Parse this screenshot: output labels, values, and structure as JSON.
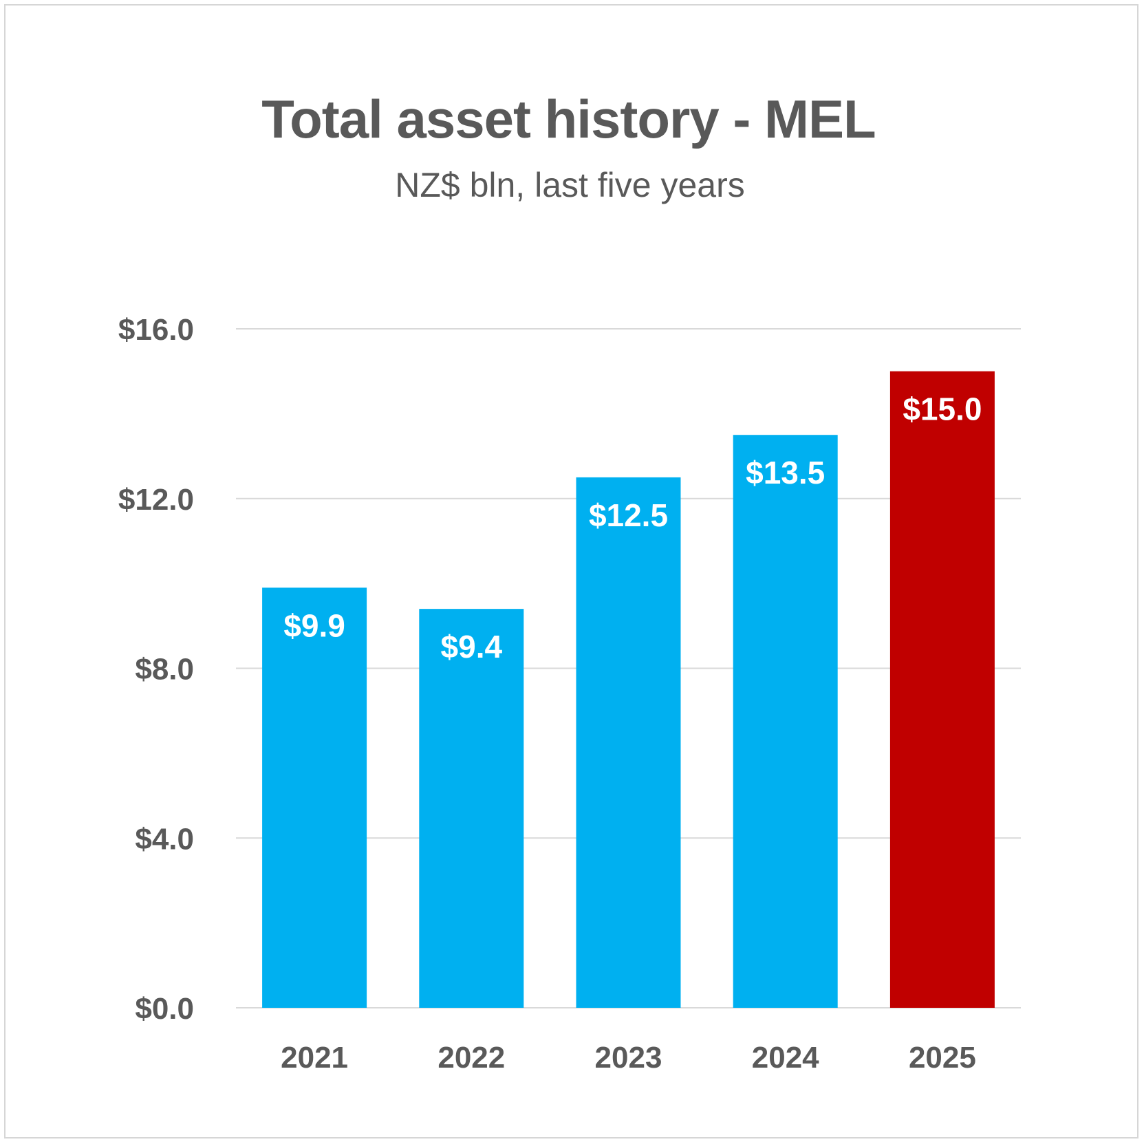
{
  "chart_data": {
    "type": "bar",
    "title": "Total asset history - MEL",
    "subtitle": "NZ$ bln, last five years",
    "xlabel": "",
    "ylabel": "",
    "categories": [
      "2021",
      "2022",
      "2023",
      "2024",
      "2025"
    ],
    "values": [
      9.9,
      9.4,
      12.5,
      13.5,
      15.0
    ],
    "data_labels": [
      "$9.9",
      "$9.4",
      "$12.5",
      "$13.5",
      "$15.0"
    ],
    "y_ticks": [
      0,
      4,
      8,
      12,
      16
    ],
    "y_tick_labels": [
      "$0.0",
      "$4.0",
      "$8.0",
      "$12.0",
      "$16.0"
    ],
    "ylim": [
      0,
      16
    ],
    "grid": true,
    "legend": "none",
    "colors": {
      "default_bar": "#00b0f0",
      "highlight_bar": "#c00000",
      "gridline": "#d9d9d9",
      "text": "#595959",
      "data_label": "#ffffff"
    },
    "highlight_index": 4
  }
}
